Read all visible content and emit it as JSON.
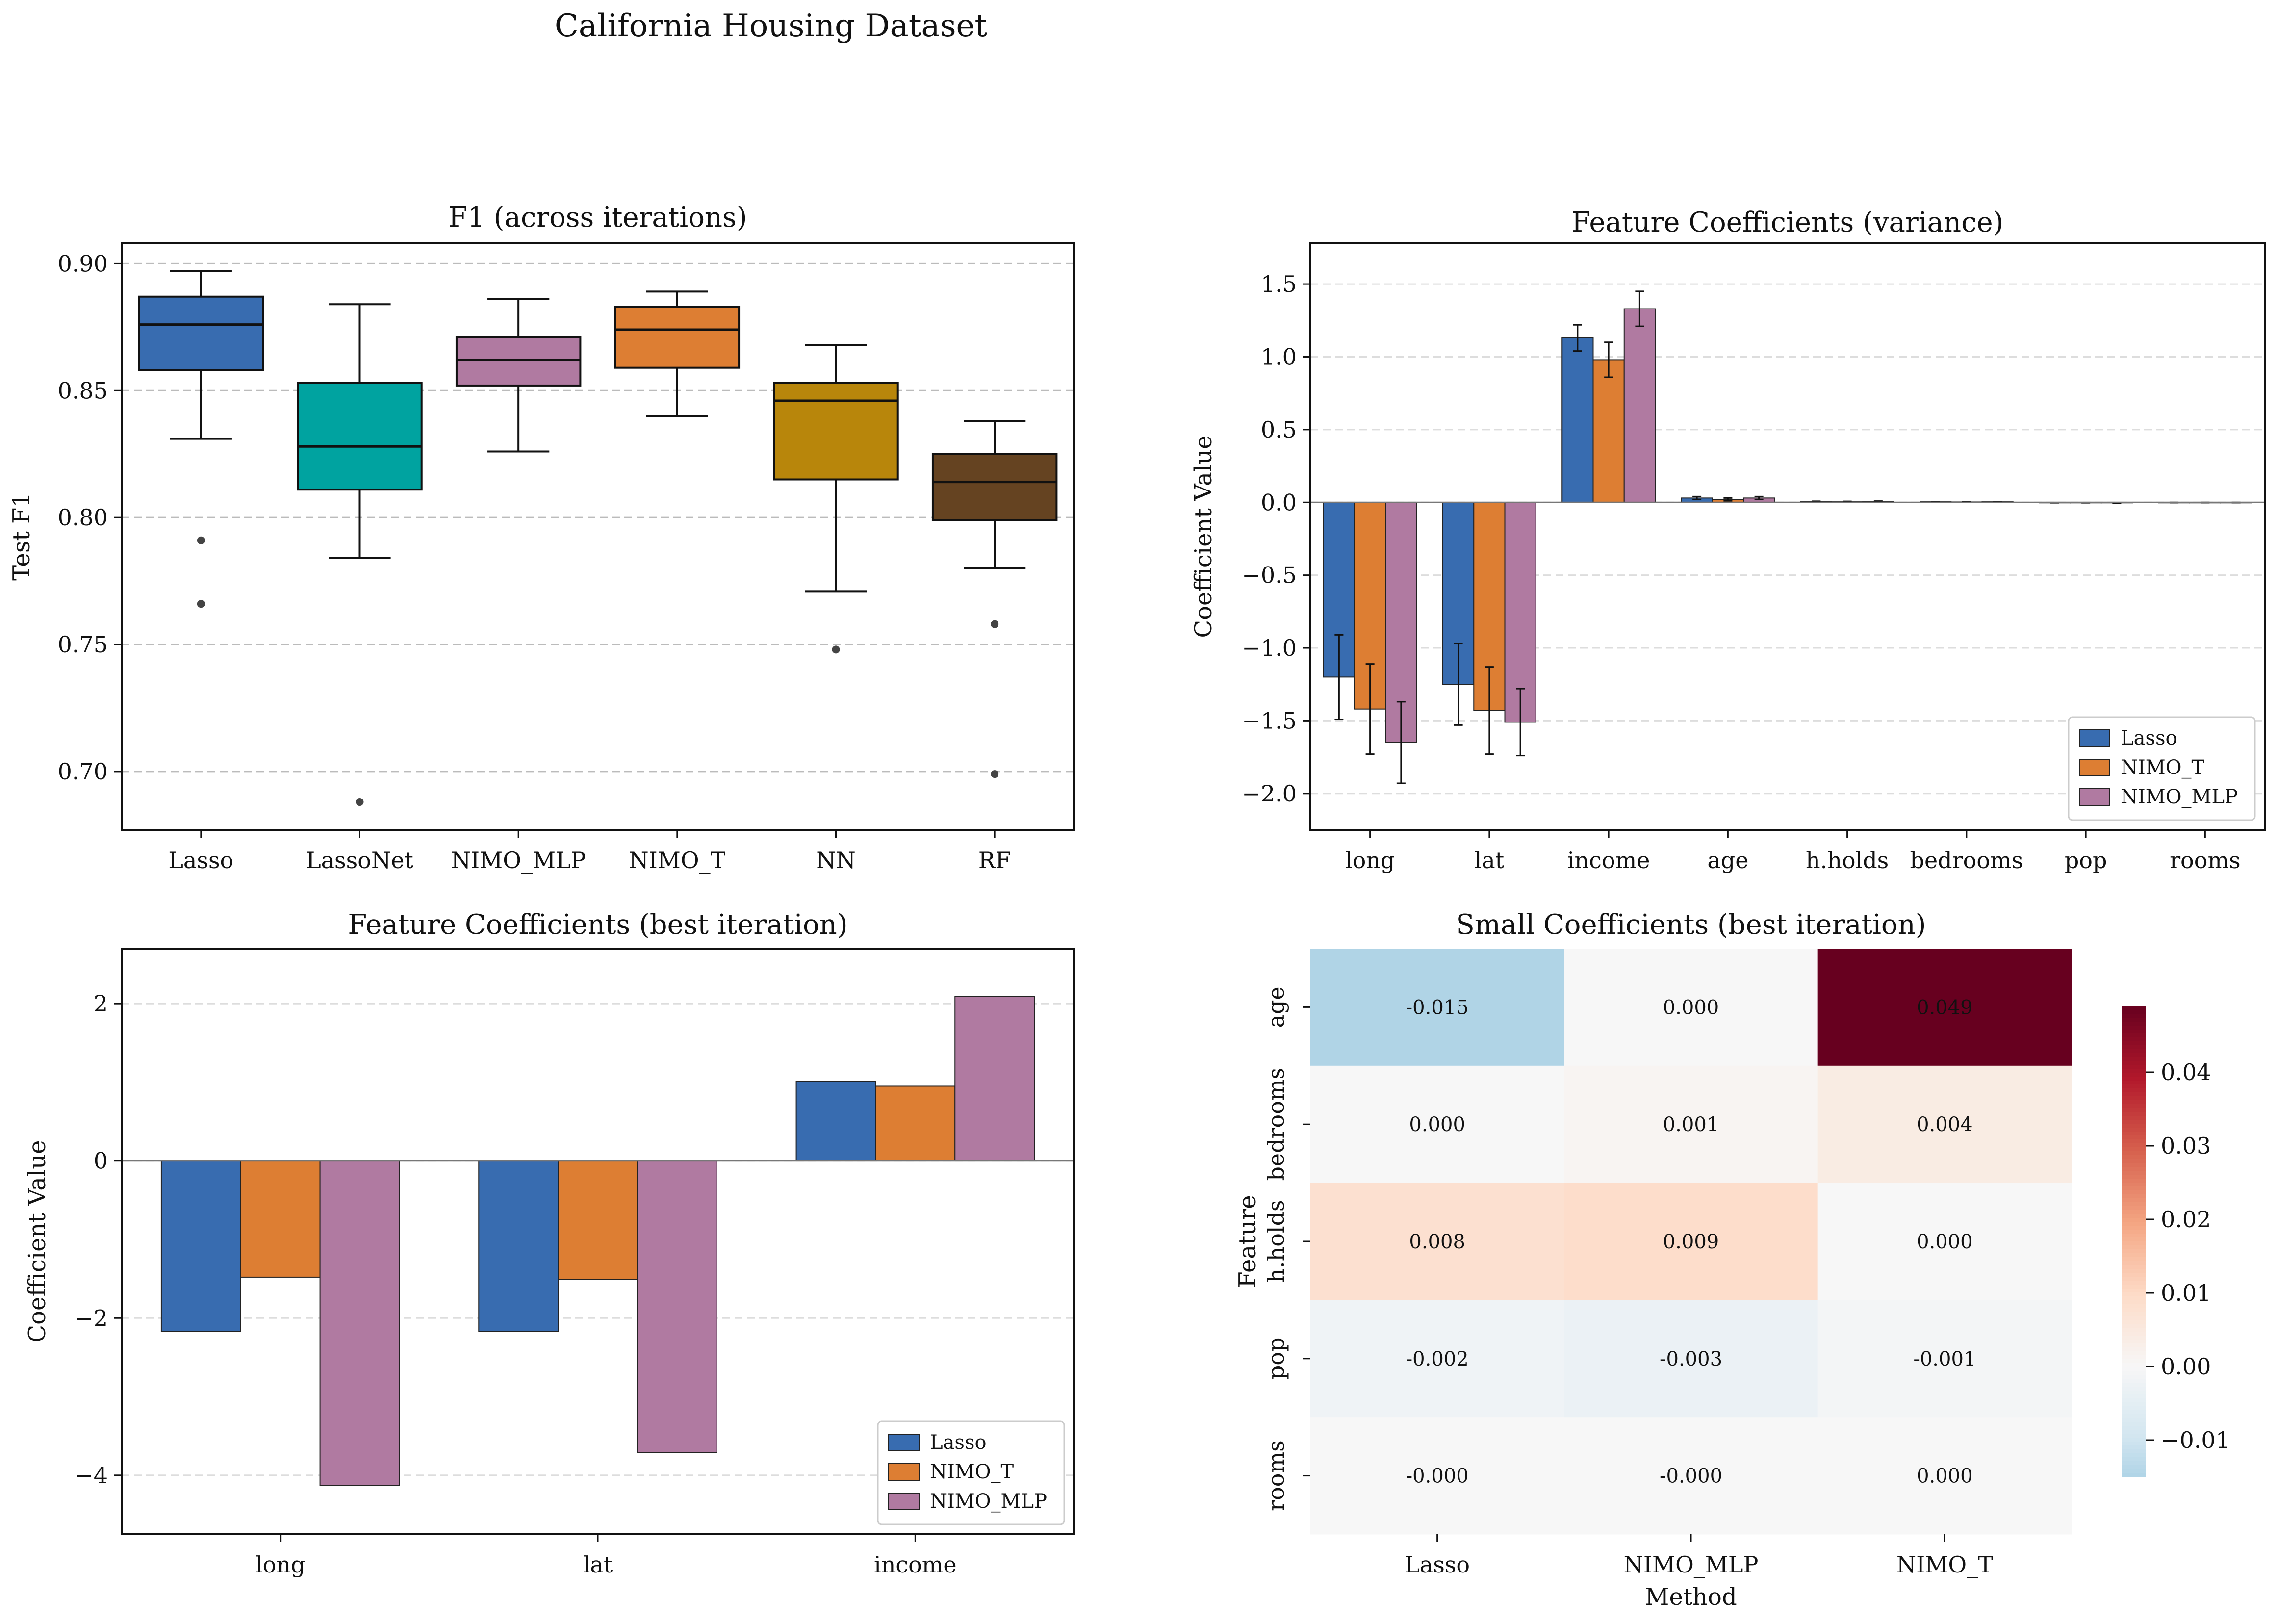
{
  "figure_title": "California Housing Dataset",
  "colors": {
    "Lasso": "#386cb0",
    "LassoNet": "#00a3a0",
    "NIMO_MLP": "#b07aa1",
    "NIMO_T": "#dd7e33",
    "NN": "#b8860b",
    "RF": "#654321"
  },
  "chart_data": [
    {
      "id": "f1_box",
      "type": "box",
      "title": "F1 (across iterations)",
      "xlabel": "",
      "ylabel": "Test F1",
      "ylim": [
        0.677,
        0.908
      ],
      "yticks": [
        0.7,
        0.75,
        0.8,
        0.85,
        0.9
      ],
      "ytick_labels": [
        "0.70",
        "0.75",
        "0.80",
        "0.85",
        "0.90"
      ],
      "grid": "y dashed",
      "categories": [
        "Lasso",
        "LassoNet",
        "NIMO_MLP",
        "NIMO_T",
        "NN",
        "RF"
      ],
      "boxes": [
        {
          "q1": 0.858,
          "median": 0.876,
          "q3": 0.887,
          "whisker_low": 0.831,
          "whisker_high": 0.897,
          "outliers": [
            0.791,
            0.766
          ]
        },
        {
          "q1": 0.811,
          "median": 0.828,
          "q3": 0.853,
          "whisker_low": 0.784,
          "whisker_high": 0.884,
          "outliers": [
            0.688
          ]
        },
        {
          "q1": 0.852,
          "median": 0.862,
          "q3": 0.871,
          "whisker_low": 0.826,
          "whisker_high": 0.886,
          "outliers": []
        },
        {
          "q1": 0.859,
          "median": 0.874,
          "q3": 0.883,
          "whisker_low": 0.84,
          "whisker_high": 0.889,
          "outliers": []
        },
        {
          "q1": 0.815,
          "median": 0.846,
          "q3": 0.853,
          "whisker_low": 0.771,
          "whisker_high": 0.868,
          "outliers": [
            0.748
          ]
        },
        {
          "q1": 0.799,
          "median": 0.814,
          "q3": 0.825,
          "whisker_low": 0.78,
          "whisker_high": 0.838,
          "outliers": [
            0.758,
            0.699
          ]
        }
      ]
    },
    {
      "id": "coef_variance",
      "type": "bar",
      "title": "Feature Coefficients (variance)",
      "xlabel": "",
      "ylabel": "Coefficient Value",
      "ylim": [
        -2.25,
        1.78
      ],
      "yticks": [
        -2.0,
        -1.5,
        -1.0,
        -0.5,
        0.0,
        0.5,
        1.0,
        1.5
      ],
      "ytick_labels": [
        "−2.0",
        "−1.5",
        "−1.0",
        "−0.5",
        "0.0",
        "0.5",
        "1.0",
        "1.5"
      ],
      "grid": "y dashed",
      "legend": "bottom-right",
      "categories": [
        "long",
        "lat",
        "income",
        "age",
        "h.holds",
        "bedrooms",
        "pop",
        "rooms"
      ],
      "series": [
        {
          "name": "Lasso",
          "values": [
            -1.2,
            -1.25,
            1.13,
            0.03,
            0.005,
            0.004,
            -0.002,
            -0.001
          ],
          "errors": [
            0.29,
            0.28,
            0.09,
            0.01,
            0.003,
            0.002,
            0.001,
            0.001
          ]
        },
        {
          "name": "NIMO_T",
          "values": [
            -1.42,
            -1.43,
            0.98,
            0.02,
            0.004,
            0.003,
            -0.002,
            -0.001
          ],
          "errors": [
            0.31,
            0.3,
            0.12,
            0.01,
            0.003,
            0.002,
            0.001,
            0.001
          ]
        },
        {
          "name": "NIMO_MLP",
          "values": [
            -1.65,
            -1.51,
            1.33,
            0.03,
            0.006,
            0.004,
            -0.003,
            -0.001
          ],
          "errors": [
            0.28,
            0.23,
            0.12,
            0.01,
            0.003,
            0.002,
            0.001,
            0.001
          ]
        }
      ]
    },
    {
      "id": "coef_best",
      "type": "bar",
      "title": "Feature Coefficients (best iteration)",
      "xlabel": "",
      "ylabel": "Coefficient Value",
      "ylim": [
        -4.75,
        2.7
      ],
      "yticks": [
        -4,
        -2,
        0,
        2
      ],
      "ytick_labels": [
        "−4",
        "−2",
        "0",
        "2"
      ],
      "grid": "y dashed",
      "legend": "bottom-right",
      "categories": [
        "long",
        "lat",
        "income"
      ],
      "series": [
        {
          "name": "Lasso",
          "values": [
            -2.17,
            -2.17,
            1.01
          ]
        },
        {
          "name": "NIMO_T",
          "values": [
            -1.48,
            -1.51,
            0.95
          ]
        },
        {
          "name": "NIMO_MLP",
          "values": [
            -4.13,
            -3.71,
            2.09
          ]
        }
      ]
    },
    {
      "id": "small_coef_heatmap",
      "type": "heatmap",
      "title": "Small Coefficients (best iteration)",
      "xlabel": "Method",
      "ylabel": "Feature",
      "x_categories": [
        "Lasso",
        "NIMO_MLP",
        "NIMO_T"
      ],
      "y_categories": [
        "age",
        "bedrooms",
        "h.holds",
        "pop",
        "rooms"
      ],
      "values": [
        [
          -0.015,
          0.0,
          0.049
        ],
        [
          0.0,
          0.001,
          0.004
        ],
        [
          0.008,
          0.009,
          0.0
        ],
        [
          -0.002,
          -0.003,
          -0.001
        ],
        [
          -0.0,
          -0.0,
          0.0
        ]
      ],
      "cell_labels": [
        [
          "-0.015",
          "0.000",
          "0.049"
        ],
        [
          "0.000",
          "0.001",
          "0.004"
        ],
        [
          "0.008",
          "0.009",
          "0.000"
        ],
        [
          "-0.002",
          "-0.003",
          "-0.001"
        ],
        [
          "-0.000",
          "-0.000",
          "0.000"
        ]
      ],
      "colormap": "RdBu_r centered at 0",
      "vmin": -0.015,
      "vmax": 0.049,
      "colorbar_ticks": [
        -0.01,
        0.0,
        0.01,
        0.02,
        0.03,
        0.04
      ],
      "colorbar_tick_labels": [
        "−0.01",
        "0.00",
        "0.01",
        "0.02",
        "0.03",
        "0.04"
      ]
    }
  ]
}
